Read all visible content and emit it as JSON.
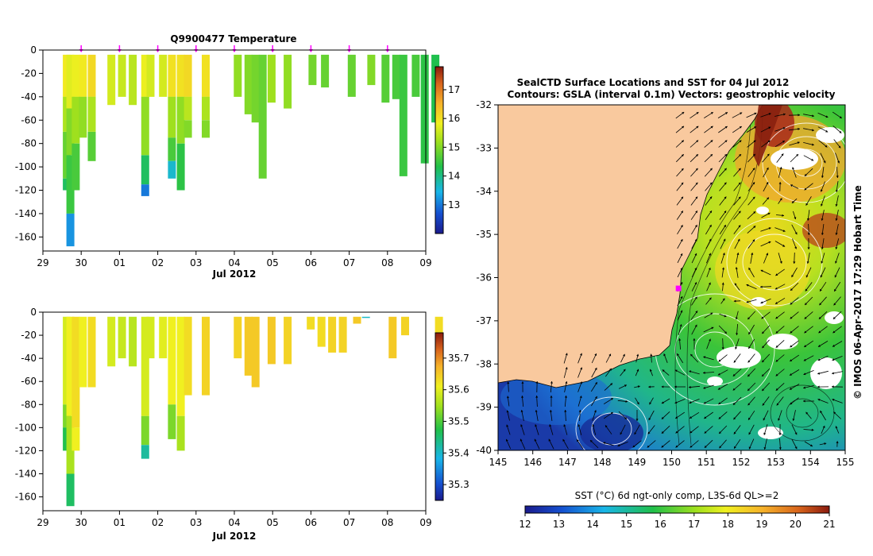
{
  "chart_data": [
    {
      "type": "heatmap",
      "title": "Q9900477  Temperature",
      "xlabel": "Jul 2012",
      "ylabel": "",
      "x_tick_labels": [
        "29",
        "30",
        "01",
        "02",
        "03",
        "04",
        "05",
        "06",
        "07",
        "08",
        "09"
      ],
      "y_tick_labels": [
        "0",
        "-20",
        "-40",
        "-60",
        "-80",
        "-100",
        "-120",
        "-140",
        "-160"
      ],
      "y_ticks": [
        0,
        -20,
        -40,
        -60,
        -80,
        -100,
        -120,
        -140,
        -160
      ],
      "ylim": [
        -172,
        0
      ],
      "xlim_days": [
        0,
        10
      ],
      "colorbar_ticks": [
        13,
        14,
        15,
        16,
        17
      ],
      "colorbar_range": [
        12,
        17.8
      ],
      "profile_markers_days": [
        1,
        2,
        3,
        4,
        5,
        6,
        7,
        8,
        9
      ],
      "profiles": [
        {
          "day": 0.35,
          "depth": -120,
          "layers": [
            [
              15.9,
              0
            ],
            [
              15.3,
              -40
            ],
            [
              14.8,
              -70
            ],
            [
              14.2,
              -110
            ]
          ]
        },
        {
          "day": 0.45,
          "depth": -168,
          "layers": [
            [
              15.7,
              0
            ],
            [
              15.0,
              -50
            ],
            [
              14.5,
              -90
            ],
            [
              13.2,
              -140
            ]
          ]
        },
        {
          "day": 0.6,
          "depth": -120,
          "layers": [
            [
              15.8,
              0
            ],
            [
              15.2,
              -40
            ],
            [
              14.6,
              -80
            ]
          ]
        },
        {
          "day": 0.8,
          "depth": -75,
          "layers": [
            [
              15.9,
              0
            ],
            [
              15.1,
              -40
            ]
          ]
        },
        {
          "day": 1.05,
          "depth": -95,
          "layers": [
            [
              16.1,
              0
            ],
            [
              15.3,
              -40
            ],
            [
              14.7,
              -70
            ]
          ]
        },
        {
          "day": 1.6,
          "depth": -47,
          "layers": [
            [
              15.6,
              0
            ]
          ]
        },
        {
          "day": 1.9,
          "depth": -40,
          "layers": [
            [
              15.5,
              0
            ]
          ]
        },
        {
          "day": 2.2,
          "depth": -47,
          "layers": [
            [
              15.4,
              0
            ]
          ]
        },
        {
          "day": 2.55,
          "depth": -125,
          "layers": [
            [
              15.8,
              0
            ],
            [
              15.1,
              -40
            ],
            [
              14.2,
              -90
            ],
            [
              13.0,
              -115
            ]
          ]
        },
        {
          "day": 2.7,
          "depth": -40,
          "layers": [
            [
              15.6,
              0
            ]
          ]
        },
        {
          "day": 3.05,
          "depth": -40,
          "layers": [
            [
              15.6,
              0
            ]
          ]
        },
        {
          "day": 3.3,
          "depth": -110,
          "layers": [
            [
              16.0,
              0
            ],
            [
              15.2,
              -40
            ],
            [
              14.6,
              -75
            ],
            [
              13.6,
              -95
            ]
          ]
        },
        {
          "day": 3.55,
          "depth": -120,
          "layers": [
            [
              16.0,
              0
            ],
            [
              15.1,
              -40
            ],
            [
              14.4,
              -80
            ]
          ]
        },
        {
          "day": 3.75,
          "depth": -75,
          "layers": [
            [
              16.1,
              0
            ],
            [
              15.4,
              -40
            ],
            [
              15.0,
              -60
            ]
          ]
        },
        {
          "day": 4.25,
          "depth": -75,
          "layers": [
            [
              16.0,
              0
            ],
            [
              15.3,
              -40
            ],
            [
              15.0,
              -60
            ]
          ]
        },
        {
          "day": 5.15,
          "depth": -40,
          "layers": [
            [
              15.1,
              0
            ]
          ]
        },
        {
          "day": 5.45,
          "depth": -55,
          "layers": [
            [
              15.0,
              0
            ]
          ]
        },
        {
          "day": 5.65,
          "depth": -62,
          "layers": [
            [
              14.9,
              0
            ]
          ]
        },
        {
          "day": 5.85,
          "depth": -110,
          "layers": [
            [
              14.8,
              0
            ]
          ]
        },
        {
          "day": 6.1,
          "depth": -45,
          "layers": [
            [
              15.2,
              0
            ]
          ]
        },
        {
          "day": 6.55,
          "depth": -50,
          "layers": [
            [
              15.1,
              0
            ]
          ]
        },
        {
          "day": 7.25,
          "depth": -30,
          "layers": [
            [
              14.9,
              0
            ]
          ]
        },
        {
          "day": 7.6,
          "depth": -32,
          "layers": [
            [
              14.8,
              0
            ]
          ]
        },
        {
          "day": 8.35,
          "depth": -40,
          "layers": [
            [
              14.8,
              0
            ]
          ]
        },
        {
          "day": 8.9,
          "depth": -30,
          "layers": [
            [
              15.0,
              0
            ]
          ]
        },
        {
          "day": 9.3,
          "depth": -45,
          "layers": [
            [
              14.7,
              0
            ]
          ]
        },
        {
          "day": 9.6,
          "depth": -42,
          "layers": [
            [
              14.6,
              0
            ]
          ]
        },
        {
          "day": 9.8,
          "depth": -108,
          "layers": [
            [
              14.5,
              0
            ]
          ]
        },
        {
          "day": 10.15,
          "depth": -40,
          "layers": [
            [
              14.6,
              0
            ]
          ]
        },
        {
          "day": 10.4,
          "depth": -97,
          "layers": [
            [
              14.4,
              0
            ]
          ]
        },
        {
          "day": 10.7,
          "depth": -62,
          "layers": [
            [
              14.3,
              0
            ]
          ]
        }
      ]
    },
    {
      "type": "heatmap",
      "title": "",
      "xlabel": "Jul 2012",
      "x_tick_labels": [
        "29",
        "30",
        "01",
        "02",
        "03",
        "04",
        "05",
        "06",
        "07",
        "08",
        "09"
      ],
      "y_tick_labels": [
        "0",
        "-20",
        "-40",
        "-60",
        "-80",
        "-100",
        "-120",
        "-140",
        "-160"
      ],
      "y_ticks": [
        0,
        -20,
        -40,
        -60,
        -80,
        -100,
        -120,
        -140,
        -160
      ],
      "ylim": [
        -172,
        0
      ],
      "colorbar_ticks": [
        35.3,
        35.4,
        35.5,
        35.6,
        35.7
      ],
      "colorbar_ticks_labels": [
        "35.3",
        "35.4",
        "35.5",
        "35.6",
        "35.7"
      ],
      "colorbar_range": [
        35.25,
        35.78
      ],
      "profiles": [
        {
          "day": 0.35,
          "depth": -120,
          "layers": [
            [
              35.58,
              0
            ],
            [
              35.52,
              -80
            ],
            [
              35.46,
              -100
            ]
          ]
        },
        {
          "day": 0.45,
          "depth": -168,
          "layers": [
            [
              35.6,
              0
            ],
            [
              35.55,
              -90
            ],
            [
              35.45,
              -140
            ]
          ]
        },
        {
          "day": 0.6,
          "depth": -120,
          "layers": [
            [
              35.62,
              0
            ],
            [
              35.6,
              -100
            ]
          ]
        },
        {
          "day": 0.8,
          "depth": -65,
          "layers": [
            [
              35.6,
              0
            ]
          ]
        },
        {
          "day": 1.05,
          "depth": -65,
          "layers": [
            [
              35.62,
              0
            ]
          ]
        },
        {
          "day": 1.6,
          "depth": -47,
          "layers": [
            [
              35.58,
              0
            ]
          ]
        },
        {
          "day": 1.9,
          "depth": -40,
          "layers": [
            [
              35.57,
              0
            ]
          ]
        },
        {
          "day": 2.2,
          "depth": -47,
          "layers": [
            [
              35.56,
              0
            ]
          ]
        },
        {
          "day": 2.55,
          "depth": -127,
          "layers": [
            [
              35.58,
              0
            ],
            [
              35.52,
              -90
            ],
            [
              35.42,
              -115
            ]
          ]
        },
        {
          "day": 2.7,
          "depth": -40,
          "layers": [
            [
              35.58,
              0
            ]
          ]
        },
        {
          "day": 3.05,
          "depth": -40,
          "layers": [
            [
              35.59,
              0
            ]
          ]
        },
        {
          "day": 3.3,
          "depth": -110,
          "layers": [
            [
              35.6,
              0
            ],
            [
              35.52,
              -80
            ]
          ]
        },
        {
          "day": 3.55,
          "depth": -120,
          "layers": [
            [
              35.6,
              0
            ],
            [
              35.55,
              -90
            ]
          ]
        },
        {
          "day": 3.75,
          "depth": -72,
          "layers": [
            [
              35.62,
              0
            ]
          ]
        },
        {
          "day": 4.25,
          "depth": -72,
          "layers": [
            [
              35.63,
              0
            ]
          ]
        },
        {
          "day": 5.15,
          "depth": -40,
          "layers": [
            [
              35.63,
              0
            ]
          ]
        },
        {
          "day": 5.45,
          "depth": -55,
          "layers": [
            [
              35.64,
              0
            ]
          ]
        },
        {
          "day": 5.65,
          "depth": -65,
          "layers": [
            [
              35.64,
              0
            ]
          ]
        },
        {
          "day": 6.1,
          "depth": -45,
          "layers": [
            [
              35.64,
              0
            ]
          ]
        },
        {
          "day": 6.55,
          "depth": -45,
          "layers": [
            [
              35.63,
              0
            ]
          ]
        },
        {
          "day": 7.2,
          "depth": -15,
          "layers": [
            [
              35.62,
              0
            ]
          ]
        },
        {
          "day": 7.5,
          "depth": -30,
          "layers": [
            [
              35.62,
              0
            ]
          ]
        },
        {
          "day": 7.8,
          "depth": -35,
          "layers": [
            [
              35.63,
              0
            ]
          ]
        },
        {
          "day": 8.1,
          "depth": -35,
          "layers": [
            [
              35.63,
              0
            ]
          ]
        },
        {
          "day": 8.5,
          "depth": -10,
          "layers": [
            [
              35.64,
              0
            ]
          ]
        },
        {
          "day": 8.75,
          "depth": -5,
          "layers": [
            [
              35.4,
              0
            ]
          ]
        },
        {
          "day": 9.5,
          "depth": -40,
          "layers": [
            [
              35.64,
              0
            ]
          ]
        },
        {
          "day": 9.85,
          "depth": -20,
          "layers": [
            [
              35.63,
              0
            ]
          ]
        },
        {
          "day": 10.8,
          "depth": -62,
          "layers": [
            [
              35.62,
              0
            ]
          ]
        }
      ]
    },
    {
      "type": "heatmap",
      "title": "SealCTD Surface Locations and SST for 04 Jul 2012",
      "subtitle": "Contours: GSLA (interval 0.1m) Vectors: geostrophic velocity",
      "xlabel": "",
      "ylabel": "",
      "x_tick_labels": [
        "145",
        "146",
        "147",
        "148",
        "149",
        "150",
        "151",
        "152",
        "153",
        "154",
        "155"
      ],
      "y_tick_labels": [
        "-32",
        "-33",
        "-34",
        "-35",
        "-36",
        "-37",
        "-38",
        "-39",
        "-40"
      ],
      "xlim": [
        145,
        155
      ],
      "ylim": [
        -40,
        -32
      ],
      "seal_location": {
        "lon": 150.2,
        "lat": -36.25
      },
      "colorbar_label": "SST (°C) 6d ngt-only comp, L3S-6d QL>=2",
      "colorbar_ticks": [
        "12",
        "13",
        "14",
        "15",
        "16",
        "17",
        "18",
        "19",
        "20",
        "21"
      ],
      "colorbar_range": [
        12,
        21
      ],
      "side_label": "© IMOS 06-Apr-2017 17:29 Hobart Time"
    }
  ]
}
